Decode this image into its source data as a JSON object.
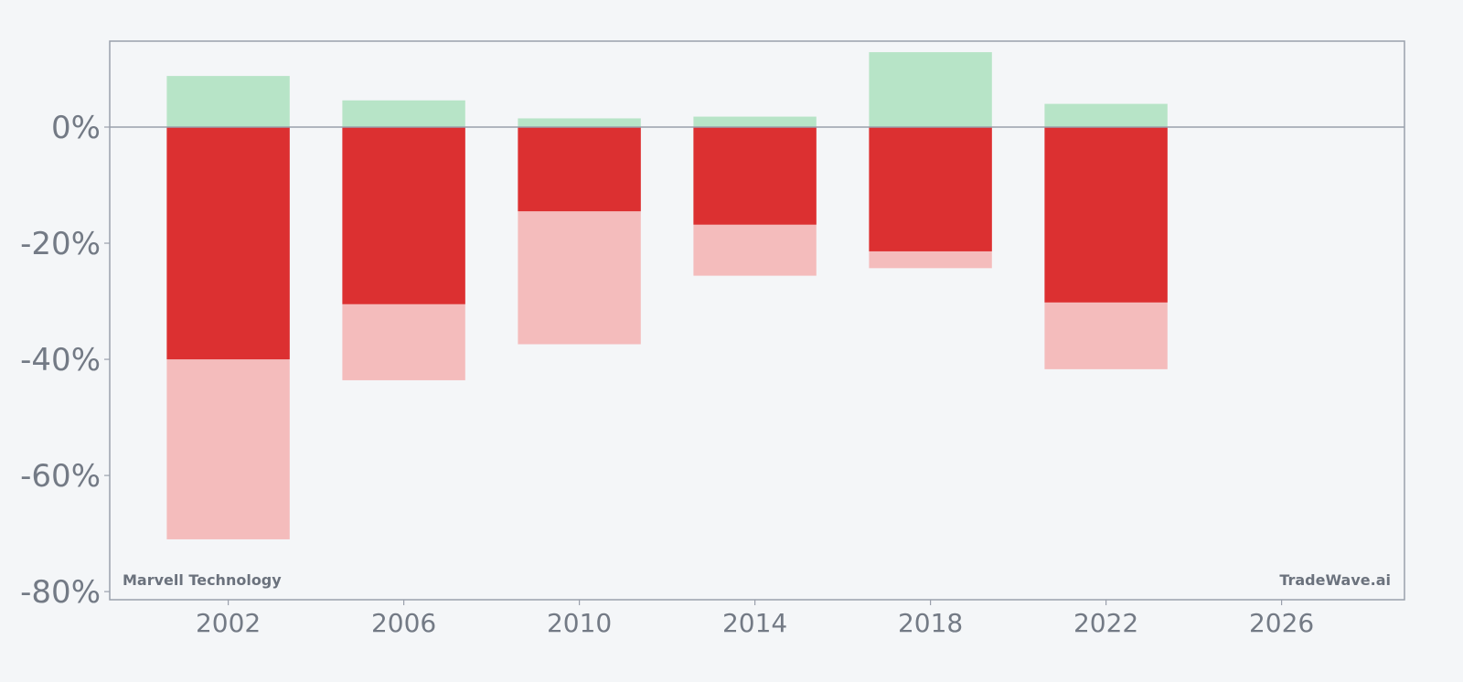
{
  "chart_data": {
    "type": "bar",
    "title": "",
    "xlabel": "",
    "ylabel": "",
    "x": [
      2002,
      2006,
      2010,
      2014,
      2018,
      2022
    ],
    "series": [
      {
        "values": [
          8.8,
          4.6,
          1.5,
          1.8,
          12.9,
          4.0
        ]
      },
      {
        "values": [
          -40.0,
          -30.5,
          -14.5,
          -16.8,
          -21.4,
          -30.2
        ]
      },
      {
        "values": [
          -71.0,
          -43.6,
          -37.4,
          -25.6,
          -24.3,
          -41.7
        ]
      }
    ],
    "xlim": [
      1999.3,
      2028.8
    ],
    "ylim": [
      -81.4,
      14.8
    ],
    "xticks": [
      2002,
      2006,
      2010,
      2014,
      2018,
      2022,
      2026
    ],
    "xtick_labels": [
      "2002",
      "2006",
      "2010",
      "2014",
      "2018",
      "2022",
      "2026"
    ],
    "yticks": [
      0,
      -20,
      -40,
      -60,
      -80
    ],
    "ytick_labels": [
      "0%",
      "-20%",
      "-40%",
      "-60%",
      "-80%"
    ],
    "grid": false,
    "legend": "none",
    "colors": {
      "positive": "#b7e4c7",
      "negative_strong": "#dc3031",
      "negative_light": "#f4bcbc",
      "axis": "#9aa0ac",
      "text": "#737a85",
      "background": "#f4f6f8"
    }
  },
  "annotations": {
    "company": "Marvell Technology",
    "source": "TradeWave.ai"
  }
}
